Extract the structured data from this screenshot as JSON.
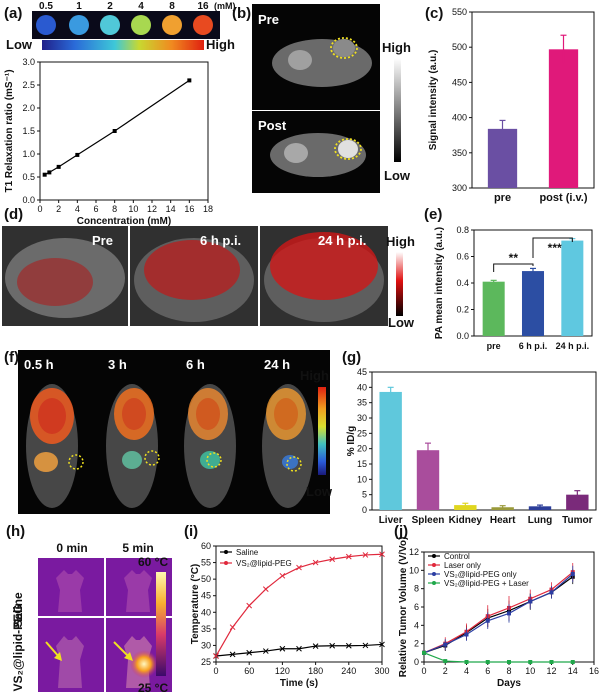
{
  "panels": {
    "a": "(a)",
    "b": "(b)",
    "c": "(c)",
    "d": "(d)",
    "e": "(e)",
    "f": "(f)",
    "g": "(g)",
    "h": "(h)",
    "i": "(i)",
    "j": "(j)"
  },
  "panel_a": {
    "concentration_labels": [
      "0.5",
      "1",
      "2",
      "4",
      "8",
      "16"
    ],
    "unit": "(mM)",
    "scale_low": "Low",
    "scale_high": "High"
  },
  "panel_b": {
    "pre": "Pre",
    "post": "Post",
    "scale_high": "High",
    "scale_low": "Low"
  },
  "panel_d": {
    "labels": [
      "Pre",
      "6 h p.i.",
      "24 h p.i."
    ],
    "scale_high": "High",
    "scale_low": "Low"
  },
  "panel_e_sig": {
    "s1": "**",
    "s2": "***"
  },
  "panel_f": {
    "times": [
      "0.5 h",
      "3 h",
      "6 h",
      "24 h"
    ],
    "scale_high": "High",
    "scale_low": "Low"
  },
  "panel_h": {
    "times": [
      "0 min",
      "5 min"
    ],
    "rows": [
      "Saline",
      "VS₂@lipid-PEG"
    ],
    "scale_top": "60 °C",
    "scale_bottom": "25 °C"
  },
  "chart_data": [
    {
      "id": "a",
      "type": "line",
      "xlabel": "Concentration (mM)",
      "ylabel": "T1 Relaxation ratio (mS⁻¹)",
      "xlim": [
        0,
        18
      ],
      "ylim": [
        0.0,
        3.0
      ],
      "xticks": [
        0,
        2,
        4,
        6,
        8,
        10,
        12,
        14,
        16,
        18
      ],
      "yticks": [
        0.0,
        0.5,
        1.0,
        1.5,
        2.0,
        2.5,
        3.0
      ],
      "x": [
        0.5,
        1,
        2,
        4,
        8,
        16
      ],
      "y": [
        0.55,
        0.6,
        0.72,
        0.98,
        1.5,
        2.6
      ]
    },
    {
      "id": "c",
      "type": "bar",
      "ylabel": "Signal intensity (a.u.)",
      "categories": [
        "pre",
        "post (i.v.)"
      ],
      "values": [
        384,
        497
      ],
      "errors": [
        12,
        20
      ],
      "colors": [
        "#6a4fa3",
        "#e0197a"
      ],
      "ylim": [
        300,
        550
      ],
      "yticks": [
        300,
        350,
        400,
        450,
        500,
        550
      ]
    },
    {
      "id": "e",
      "type": "bar",
      "ylabel": "PA mean intensity (a.u.)",
      "categories": [
        "pre",
        "6 h p.i.",
        "24 h p.i."
      ],
      "values": [
        0.41,
        0.49,
        0.72
      ],
      "errors": [
        0.01,
        0.02,
        0.015
      ],
      "colors": [
        "#5cb85c",
        "#2c4ea3",
        "#5fc8e0"
      ],
      "ylim": [
        0.0,
        0.8
      ],
      "yticks": [
        0.0,
        0.2,
        0.4,
        0.6,
        0.8
      ]
    },
    {
      "id": "g",
      "type": "bar",
      "ylabel": "% ID/g",
      "categories": [
        "Liver",
        "Spleen",
        "Kidney",
        "Heart",
        "Lung",
        "Tumor"
      ],
      "values": [
        38.5,
        19.5,
        1.6,
        0.9,
        1.2,
        5.0
      ],
      "errors": [
        1.5,
        2.3,
        0.6,
        0.5,
        0.4,
        1.3
      ],
      "colors": [
        "#5fc8dc",
        "#a94d9c",
        "#e0d61f",
        "#9a9a3a",
        "#2c3e9a",
        "#7a2a7a"
      ],
      "ylim": [
        0,
        45
      ],
      "yticks": [
        0,
        5,
        10,
        15,
        20,
        25,
        30,
        35,
        40,
        45
      ]
    },
    {
      "id": "i",
      "type": "line",
      "xlabel": "Time (s)",
      "ylabel": "Temperature (°C)",
      "xlim": [
        0,
        300
      ],
      "ylim": [
        25,
        60
      ],
      "xticks": [
        0,
        60,
        120,
        180,
        240,
        300
      ],
      "yticks": [
        25,
        30,
        35,
        40,
        45,
        50,
        55,
        60
      ],
      "series": [
        {
          "name": "Saline",
          "color": "#000000",
          "x": [
            0,
            30,
            60,
            90,
            120,
            150,
            180,
            210,
            240,
            270,
            300
          ],
          "y": [
            26.8,
            27.3,
            27.8,
            28.3,
            29.0,
            29.0,
            29.8,
            29.9,
            29.9,
            30.0,
            30.3
          ]
        },
        {
          "name": "VS₂@lipid-PEG",
          "color": "#e0283c",
          "x": [
            0,
            30,
            60,
            90,
            120,
            150,
            180,
            210,
            240,
            270,
            300
          ],
          "y": [
            26.8,
            35.5,
            42.0,
            47.0,
            51.0,
            53.5,
            55.0,
            56.0,
            56.8,
            57.3,
            57.5
          ]
        }
      ]
    },
    {
      "id": "j",
      "type": "line",
      "xlabel": "Days",
      "ylabel": "Relative Tumor Volume (V/Vo)",
      "xlim": [
        0,
        16
      ],
      "ylim": [
        0,
        12
      ],
      "xticks": [
        0,
        2,
        4,
        6,
        8,
        10,
        12,
        14,
        16
      ],
      "yticks": [
        0,
        2,
        4,
        6,
        8,
        10,
        12
      ],
      "series": [
        {
          "name": "Control",
          "color": "#000000",
          "x": [
            0,
            2,
            4,
            6,
            8,
            10,
            12,
            14
          ],
          "y": [
            1.0,
            1.8,
            3.2,
            4.8,
            5.6,
            6.6,
            7.6,
            9.3
          ],
          "err": [
            0.1,
            0.6,
            0.8,
            1.0,
            1.1,
            0.9,
            0.6,
            0.8
          ]
        },
        {
          "name": "Laser only",
          "color": "#e0283c",
          "x": [
            0,
            2,
            4,
            6,
            8,
            10,
            12,
            14
          ],
          "y": [
            1.0,
            2.0,
            3.3,
            5.0,
            5.9,
            6.9,
            7.9,
            9.8
          ],
          "err": [
            0.1,
            0.7,
            0.9,
            1.2,
            1.3,
            1.0,
            0.8,
            1.0
          ]
        },
        {
          "name": "VS₂@lipid-PEG only",
          "color": "#2c3ea3",
          "x": [
            0,
            2,
            4,
            6,
            8,
            10,
            12,
            14
          ],
          "y": [
            1.0,
            1.9,
            3.0,
            4.5,
            5.3,
            6.6,
            7.6,
            9.6
          ],
          "err": [
            0.1,
            0.6,
            0.7,
            0.9,
            1.0,
            0.8,
            0.7,
            0.9
          ]
        },
        {
          "name": "VS₂@lipid-PEG + Laser",
          "color": "#1fa84a",
          "x": [
            0,
            2,
            4,
            6,
            8,
            10,
            12,
            14
          ],
          "y": [
            1.0,
            0.1,
            0.0,
            0.0,
            0.0,
            0.0,
            0.0,
            0.0
          ],
          "err": [
            0,
            0,
            0,
            0,
            0,
            0,
            0,
            0
          ]
        }
      ]
    }
  ]
}
